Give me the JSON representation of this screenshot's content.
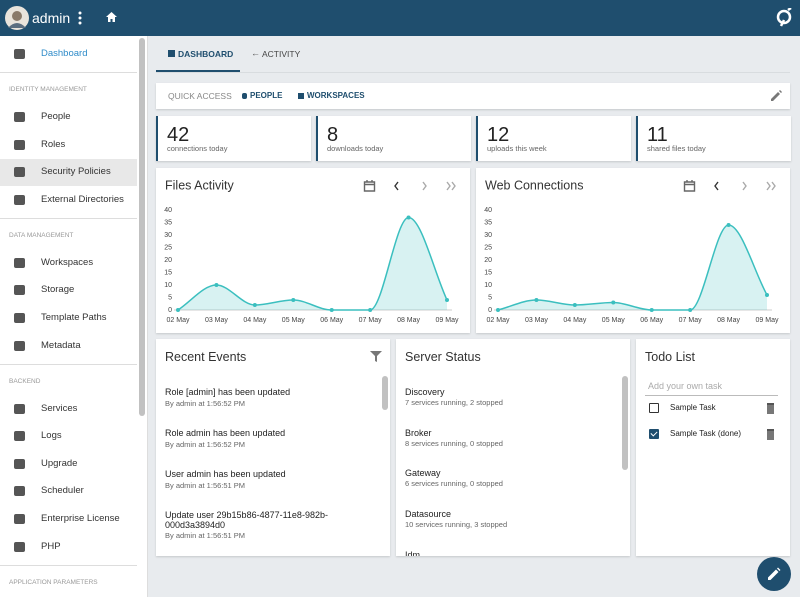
{
  "header": {
    "user": "admin"
  },
  "sidebar": {
    "dashboard": "Dashboard",
    "sections": [
      {
        "title": "IDENTITY MANAGEMENT",
        "items": [
          "People",
          "Roles",
          "Security Policies",
          "External Directories"
        ]
      },
      {
        "title": "DATA MANAGEMENT",
        "items": [
          "Workspaces",
          "Storage",
          "Template Paths",
          "Metadata"
        ]
      },
      {
        "title": "BACKEND",
        "items": [
          "Services",
          "Logs",
          "Upgrade",
          "Scheduler",
          "Enterprise License",
          "PHP"
        ]
      },
      {
        "title": "APPLICATION PARAMETERS"
      }
    ]
  },
  "tabs": [
    "DASHBOARD",
    "ACTIVITY"
  ],
  "quick_access": {
    "label": "QUICK ACCESS",
    "links": [
      "PEOPLE",
      "WORKSPACES"
    ]
  },
  "stats": [
    {
      "value": 42,
      "label": "connections today"
    },
    {
      "value": 8,
      "label": "downloads today"
    },
    {
      "value": 12,
      "label": "uploads this week"
    },
    {
      "value": 11,
      "label": "shared files today"
    }
  ],
  "chart_data": [
    {
      "type": "line",
      "title": "Files Activity",
      "area": true,
      "color": "#3bbfbf",
      "categories": [
        "02 May",
        "03 May",
        "04 May",
        "05 May",
        "06 May",
        "07 May",
        "08 May",
        "09 May"
      ],
      "values": [
        0,
        10,
        2,
        4,
        0,
        0,
        37,
        4
      ],
      "ylim": [
        0,
        40
      ],
      "yticks": [
        0,
        5,
        10,
        15,
        20,
        25,
        30,
        35,
        40
      ],
      "grid": false
    },
    {
      "type": "line",
      "title": "Web Connections",
      "area": true,
      "color": "#3bbfbf",
      "categories": [
        "02 May",
        "03 May",
        "04 May",
        "05 May",
        "06 May",
        "07 May",
        "08 May",
        "09 May"
      ],
      "values": [
        0,
        4,
        2,
        3,
        0,
        0,
        34,
        6
      ],
      "ylim": [
        0,
        40
      ],
      "yticks": [
        0,
        5,
        10,
        15,
        20,
        25,
        30,
        35,
        40
      ],
      "grid": false
    }
  ],
  "recent_events": {
    "title": "Recent Events",
    "items": [
      {
        "text": "Role [admin] has been updated",
        "meta": "By admin at 1:56:52 PM"
      },
      {
        "text": "Role admin has been updated",
        "meta": "By admin at 1:56:52 PM"
      },
      {
        "text": "User admin has been updated",
        "meta": "By admin at 1:56:51 PM"
      },
      {
        "text": "Update user 29b15b86-4877-11e8-982b-000d3a3894d0",
        "meta": "By admin at 1:56:51 PM"
      }
    ]
  },
  "server_status": {
    "title": "Server Status",
    "items": [
      {
        "name": "Discovery",
        "detail": "7 services running, 2 stopped"
      },
      {
        "name": "Broker",
        "detail": "8 services running, 0 stopped"
      },
      {
        "name": "Gateway",
        "detail": "6 services running, 0 stopped"
      },
      {
        "name": "Datasource",
        "detail": "10 services running, 3 stopped"
      },
      {
        "name": "Idm"
      }
    ]
  },
  "todo": {
    "title": "Todo List",
    "placeholder": "Add your own task",
    "items": [
      {
        "text": "Sample Task",
        "done": false
      },
      {
        "text": "Sample Task (done)",
        "done": true
      }
    ]
  }
}
